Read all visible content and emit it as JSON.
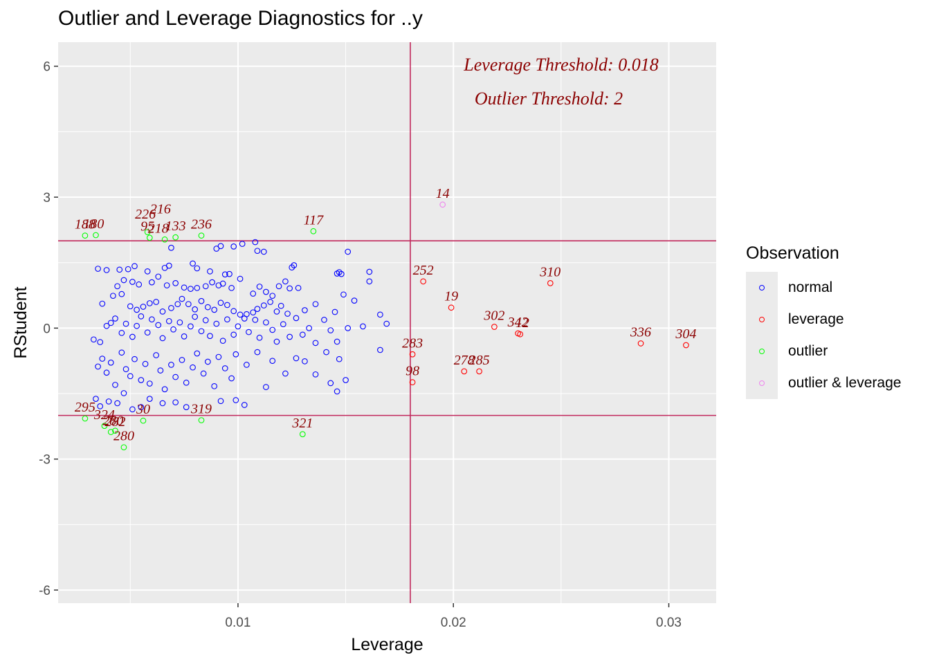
{
  "chart_data": {
    "type": "scatter",
    "title": "Outlier and Leverage Diagnostics for ..y",
    "xlabel": "Leverage",
    "ylabel": "RStudent",
    "xlim": [
      0.00165,
      0.0322
    ],
    "ylim": [
      -6.3,
      6.55
    ],
    "x_ticks": [
      0.01,
      0.02,
      0.03
    ],
    "x_tick_labels": [
      "0.01",
      "0.02",
      "0.03"
    ],
    "y_ticks": [
      -6,
      -3,
      0,
      3,
      6
    ],
    "y_tick_labels": [
      "-6",
      "-3",
      "0",
      "3",
      "6"
    ],
    "grid": true,
    "leverage_threshold": 0.018,
    "outlier_threshold": 2,
    "threshold_line_color": "#c1265b",
    "annotations": [
      "Leverage Threshold: 0.018",
      "Outlier Threshold: 2"
    ],
    "annotation_color": "#8b0000",
    "legend": {
      "title": "Observation",
      "placement": "right",
      "items": [
        {
          "label": "normal",
          "color": "#0000ff"
        },
        {
          "label": "leverage",
          "color": "#ff0000"
        },
        {
          "label": "outlier",
          "color": "#00ff00"
        },
        {
          "label": "outlier & leverage",
          "color": "#ee82ee"
        }
      ]
    },
    "series": [
      {
        "name": "normal",
        "color": "#0000ff",
        "points": [
          [
            0.0035,
            1.36
          ],
          [
            0.0039,
            1.33
          ],
          [
            0.0045,
            1.34
          ],
          [
            0.0049,
            1.35
          ],
          [
            0.0052,
            1.42
          ],
          [
            0.0058,
            1.3
          ],
          [
            0.0066,
            1.38
          ],
          [
            0.0068,
            1.43
          ],
          [
            0.0079,
            1.48
          ],
          [
            0.0081,
            1.37
          ],
          [
            0.0087,
            1.3
          ],
          [
            0.0094,
            1.23
          ],
          [
            0.0101,
            1.13
          ],
          [
            0.0096,
            1.24
          ],
          [
            0.0125,
            1.39
          ],
          [
            0.0126,
            1.44
          ],
          [
            0.0146,
            1.25
          ],
          [
            0.0147,
            1.28
          ],
          [
            0.0148,
            1.24
          ],
          [
            0.0161,
            1.29
          ],
          [
            0.0044,
            0.96
          ],
          [
            0.0047,
            1.1
          ],
          [
            0.0051,
            1.06
          ],
          [
            0.0054,
            1.0
          ],
          [
            0.006,
            1.05
          ],
          [
            0.0063,
            1.18
          ],
          [
            0.0067,
            0.98
          ],
          [
            0.0071,
            1.03
          ],
          [
            0.0075,
            0.93
          ],
          [
            0.0078,
            0.9
          ],
          [
            0.0081,
            0.92
          ],
          [
            0.0085,
            0.96
          ],
          [
            0.0088,
            1.05
          ],
          [
            0.0091,
            0.98
          ],
          [
            0.0093,
            1.02
          ],
          [
            0.0097,
            0.92
          ],
          [
            0.0107,
            0.79
          ],
          [
            0.011,
            0.95
          ],
          [
            0.0113,
            0.83
          ],
          [
            0.0116,
            0.74
          ],
          [
            0.0119,
            0.96
          ],
          [
            0.0122,
            1.07
          ],
          [
            0.0124,
            0.91
          ],
          [
            0.0128,
            0.92
          ],
          [
            0.0151,
            1.75
          ],
          [
            0.0161,
            1.07
          ],
          [
            0.0037,
            0.56
          ],
          [
            0.0042,
            0.74
          ],
          [
            0.0046,
            0.78
          ],
          [
            0.005,
            0.5
          ],
          [
            0.0053,
            0.42
          ],
          [
            0.0056,
            0.49
          ],
          [
            0.0059,
            0.57
          ],
          [
            0.0062,
            0.6
          ],
          [
            0.0065,
            0.38
          ],
          [
            0.0069,
            0.46
          ],
          [
            0.0072,
            0.55
          ],
          [
            0.0074,
            0.67
          ],
          [
            0.0077,
            0.55
          ],
          [
            0.008,
            0.43
          ],
          [
            0.0083,
            0.62
          ],
          [
            0.0086,
            0.48
          ],
          [
            0.0089,
            0.42
          ],
          [
            0.0092,
            0.58
          ],
          [
            0.0095,
            0.53
          ],
          [
            0.0098,
            0.39
          ],
          [
            0.0101,
            0.31
          ],
          [
            0.0104,
            0.32
          ],
          [
            0.0107,
            0.36
          ],
          [
            0.0109,
            0.44
          ],
          [
            0.0112,
            0.52
          ],
          [
            0.0115,
            0.6
          ],
          [
            0.0118,
            0.38
          ],
          [
            0.012,
            0.51
          ],
          [
            0.0123,
            0.33
          ],
          [
            0.0131,
            0.41
          ],
          [
            0.0136,
            0.55
          ],
          [
            0.0145,
            0.37
          ],
          [
            0.0149,
            0.77
          ],
          [
            0.0154,
            0.63
          ],
          [
            0.0166,
            0.31
          ],
          [
            0.0033,
            -0.26
          ],
          [
            0.0036,
            -0.32
          ],
          [
            0.0039,
            0.05
          ],
          [
            0.0041,
            0.12
          ],
          [
            0.0043,
            0.22
          ],
          [
            0.0046,
            -0.11
          ],
          [
            0.0048,
            0.1
          ],
          [
            0.0051,
            -0.2
          ],
          [
            0.0053,
            0.05
          ],
          [
            0.0055,
            0.27
          ],
          [
            0.0058,
            -0.1
          ],
          [
            0.006,
            0.2
          ],
          [
            0.0063,
            0.07
          ],
          [
            0.0065,
            -0.23
          ],
          [
            0.0068,
            0.16
          ],
          [
            0.007,
            -0.03
          ],
          [
            0.0073,
            0.13
          ],
          [
            0.0075,
            -0.19
          ],
          [
            0.0078,
            0.04
          ],
          [
            0.008,
            0.26
          ],
          [
            0.0083,
            -0.07
          ],
          [
            0.0085,
            0.18
          ],
          [
            0.0087,
            -0.18
          ],
          [
            0.009,
            0.1
          ],
          [
            0.0093,
            -0.29
          ],
          [
            0.0095,
            0.2
          ],
          [
            0.0098,
            -0.15
          ],
          [
            0.01,
            0.04
          ],
          [
            0.0103,
            0.22
          ],
          [
            0.0105,
            -0.09
          ],
          [
            0.0108,
            0.19
          ],
          [
            0.011,
            -0.22
          ],
          [
            0.0113,
            0.13
          ],
          [
            0.0116,
            -0.04
          ],
          [
            0.0118,
            -0.31
          ],
          [
            0.0121,
            0.09
          ],
          [
            0.0124,
            -0.2
          ],
          [
            0.0127,
            0.23
          ],
          [
            0.013,
            -0.15
          ],
          [
            0.0133,
            0.0
          ],
          [
            0.0136,
            -0.34
          ],
          [
            0.014,
            0.19
          ],
          [
            0.0143,
            -0.05
          ],
          [
            0.0146,
            -0.31
          ],
          [
            0.0151,
            0.0
          ],
          [
            0.0158,
            0.04
          ],
          [
            0.0169,
            0.1
          ],
          [
            0.0166,
            -0.5
          ],
          [
            0.0035,
            -0.88
          ],
          [
            0.0037,
            -0.7
          ],
          [
            0.0039,
            -1.02
          ],
          [
            0.0041,
            -0.79
          ],
          [
            0.0043,
            -1.3
          ],
          [
            0.0046,
            -0.56
          ],
          [
            0.0048,
            -0.94
          ],
          [
            0.005,
            -1.1
          ],
          [
            0.0052,
            -0.71
          ],
          [
            0.0055,
            -1.19
          ],
          [
            0.0057,
            -0.82
          ],
          [
            0.0059,
            -1.27
          ],
          [
            0.0062,
            -0.62
          ],
          [
            0.0064,
            -0.97
          ],
          [
            0.0066,
            -1.4
          ],
          [
            0.0069,
            -0.84
          ],
          [
            0.0071,
            -1.12
          ],
          [
            0.0074,
            -0.73
          ],
          [
            0.0076,
            -1.25
          ],
          [
            0.0079,
            -0.9
          ],
          [
            0.0081,
            -0.58
          ],
          [
            0.0084,
            -1.04
          ],
          [
            0.0086,
            -0.77
          ],
          [
            0.0089,
            -1.33
          ],
          [
            0.0091,
            -0.66
          ],
          [
            0.0094,
            -0.92
          ],
          [
            0.0097,
            -1.15
          ],
          [
            0.0099,
            -0.6
          ],
          [
            0.0104,
            -0.84
          ],
          [
            0.0109,
            -0.55
          ],
          [
            0.0113,
            -1.35
          ],
          [
            0.0116,
            -0.75
          ],
          [
            0.0122,
            -1.04
          ],
          [
            0.0127,
            -0.69
          ],
          [
            0.0131,
            -0.76
          ],
          [
            0.0136,
            -1.06
          ],
          [
            0.0141,
            -0.55
          ],
          [
            0.0143,
            -1.26
          ],
          [
            0.0146,
            -1.45
          ],
          [
            0.015,
            -1.19
          ],
          [
            0.0147,
            -0.71
          ],
          [
            0.0034,
            -1.62
          ],
          [
            0.0036,
            -1.79
          ],
          [
            0.004,
            -1.68
          ],
          [
            0.0044,
            -1.72
          ],
          [
            0.0047,
            -1.49
          ],
          [
            0.0051,
            -1.86
          ],
          [
            0.0055,
            -1.81
          ],
          [
            0.0059,
            -1.62
          ],
          [
            0.0065,
            -1.72
          ],
          [
            0.0071,
            -1.7
          ],
          [
            0.0076,
            -1.81
          ],
          [
            0.0092,
            -1.67
          ],
          [
            0.0099,
            -1.65
          ],
          [
            0.0103,
            -1.76
          ],
          [
            0.0108,
            1.97
          ],
          [
            0.0112,
            1.75
          ],
          [
            0.0098,
            1.87
          ],
          [
            0.0092,
            1.88
          ],
          [
            0.009,
            1.82
          ],
          [
            0.0069,
            1.84
          ],
          [
            0.0109,
            1.77
          ],
          [
            0.0102,
            1.93
          ]
        ]
      },
      {
        "name": "leverage",
        "color": "#ff0000",
        "points": [
          [
            0.0186,
            1.07
          ],
          [
            0.0199,
            0.47
          ],
          [
            0.0245,
            1.03
          ],
          [
            0.0219,
            0.03
          ],
          [
            0.023,
            -0.12
          ],
          [
            0.0231,
            -0.14
          ],
          [
            0.0287,
            -0.35
          ],
          [
            0.0308,
            -0.39
          ],
          [
            0.0181,
            -0.6
          ],
          [
            0.0181,
            -1.24
          ],
          [
            0.0205,
            -0.99
          ],
          [
            0.0212,
            -0.99
          ]
        ]
      },
      {
        "name": "outlier",
        "color": "#00ff00",
        "points": [
          [
            0.0029,
            2.12
          ],
          [
            0.0034,
            2.13
          ],
          [
            0.0058,
            2.2
          ],
          [
            0.0059,
            2.07
          ],
          [
            0.0066,
            2.03
          ],
          [
            0.0071,
            2.08
          ],
          [
            0.0083,
            2.12
          ],
          [
            0.0135,
            2.22
          ],
          [
            0.0029,
            -2.07
          ],
          [
            0.0038,
            -2.24
          ],
          [
            0.0041,
            -2.38
          ],
          [
            0.0043,
            -2.35
          ],
          [
            0.0056,
            -2.12
          ],
          [
            0.0083,
            -2.11
          ],
          [
            0.0047,
            -2.73
          ],
          [
            0.013,
            -2.43
          ]
        ]
      },
      {
        "name": "outlier & leverage",
        "color": "#ee82ee",
        "points": [
          [
            0.0195,
            2.83
          ]
        ]
      }
    ],
    "point_labels": [
      {
        "text": "188",
        "x": 0.0029,
        "y": 2.12
      },
      {
        "text": "180",
        "x": 0.0033,
        "y": 2.13
      },
      {
        "text": "226",
        "x": 0.0057,
        "y": 2.35
      },
      {
        "text": "216",
        "x": 0.0064,
        "y": 2.47
      },
      {
        "text": "95",
        "x": 0.0058,
        "y": 2.07
      },
      {
        "text": "218",
        "x": 0.0063,
        "y": 2.03
      },
      {
        "text": "133",
        "x": 0.0071,
        "y": 2.08
      },
      {
        "text": "236",
        "x": 0.0083,
        "y": 2.12
      },
      {
        "text": "117",
        "x": 0.0135,
        "y": 2.22
      },
      {
        "text": "14",
        "x": 0.0195,
        "y": 2.83
      },
      {
        "text": "252",
        "x": 0.0186,
        "y": 1.07
      },
      {
        "text": "310",
        "x": 0.0245,
        "y": 1.03
      },
      {
        "text": "19",
        "x": 0.0199,
        "y": 0.47
      },
      {
        "text": "302",
        "x": 0.0219,
        "y": 0.03
      },
      {
        "text": "342",
        "x": 0.023,
        "y": -0.12
      },
      {
        "text": "12",
        "x": 0.0232,
        "y": -0.14
      },
      {
        "text": "336",
        "x": 0.0287,
        "y": -0.35
      },
      {
        "text": "304",
        "x": 0.0308,
        "y": -0.39
      },
      {
        "text": "283",
        "x": 0.0181,
        "y": -0.6
      },
      {
        "text": "98",
        "x": 0.0181,
        "y": -1.24
      },
      {
        "text": "278",
        "x": 0.0205,
        "y": -0.99
      },
      {
        "text": "285",
        "x": 0.0212,
        "y": -0.99
      },
      {
        "text": "295",
        "x": 0.0029,
        "y": -2.07
      },
      {
        "text": "324",
        "x": 0.0038,
        "y": -2.24
      },
      {
        "text": "280",
        "x": 0.0042,
        "y": -2.38
      },
      {
        "text": "282",
        "x": 0.0043,
        "y": -2.4
      },
      {
        "text": "30",
        "x": 0.0056,
        "y": -2.12
      },
      {
        "text": "319",
        "x": 0.0083,
        "y": -2.11
      },
      {
        "text": "280",
        "x": 0.0047,
        "y": -2.73
      },
      {
        "text": "321",
        "x": 0.013,
        "y": -2.43
      }
    ]
  }
}
